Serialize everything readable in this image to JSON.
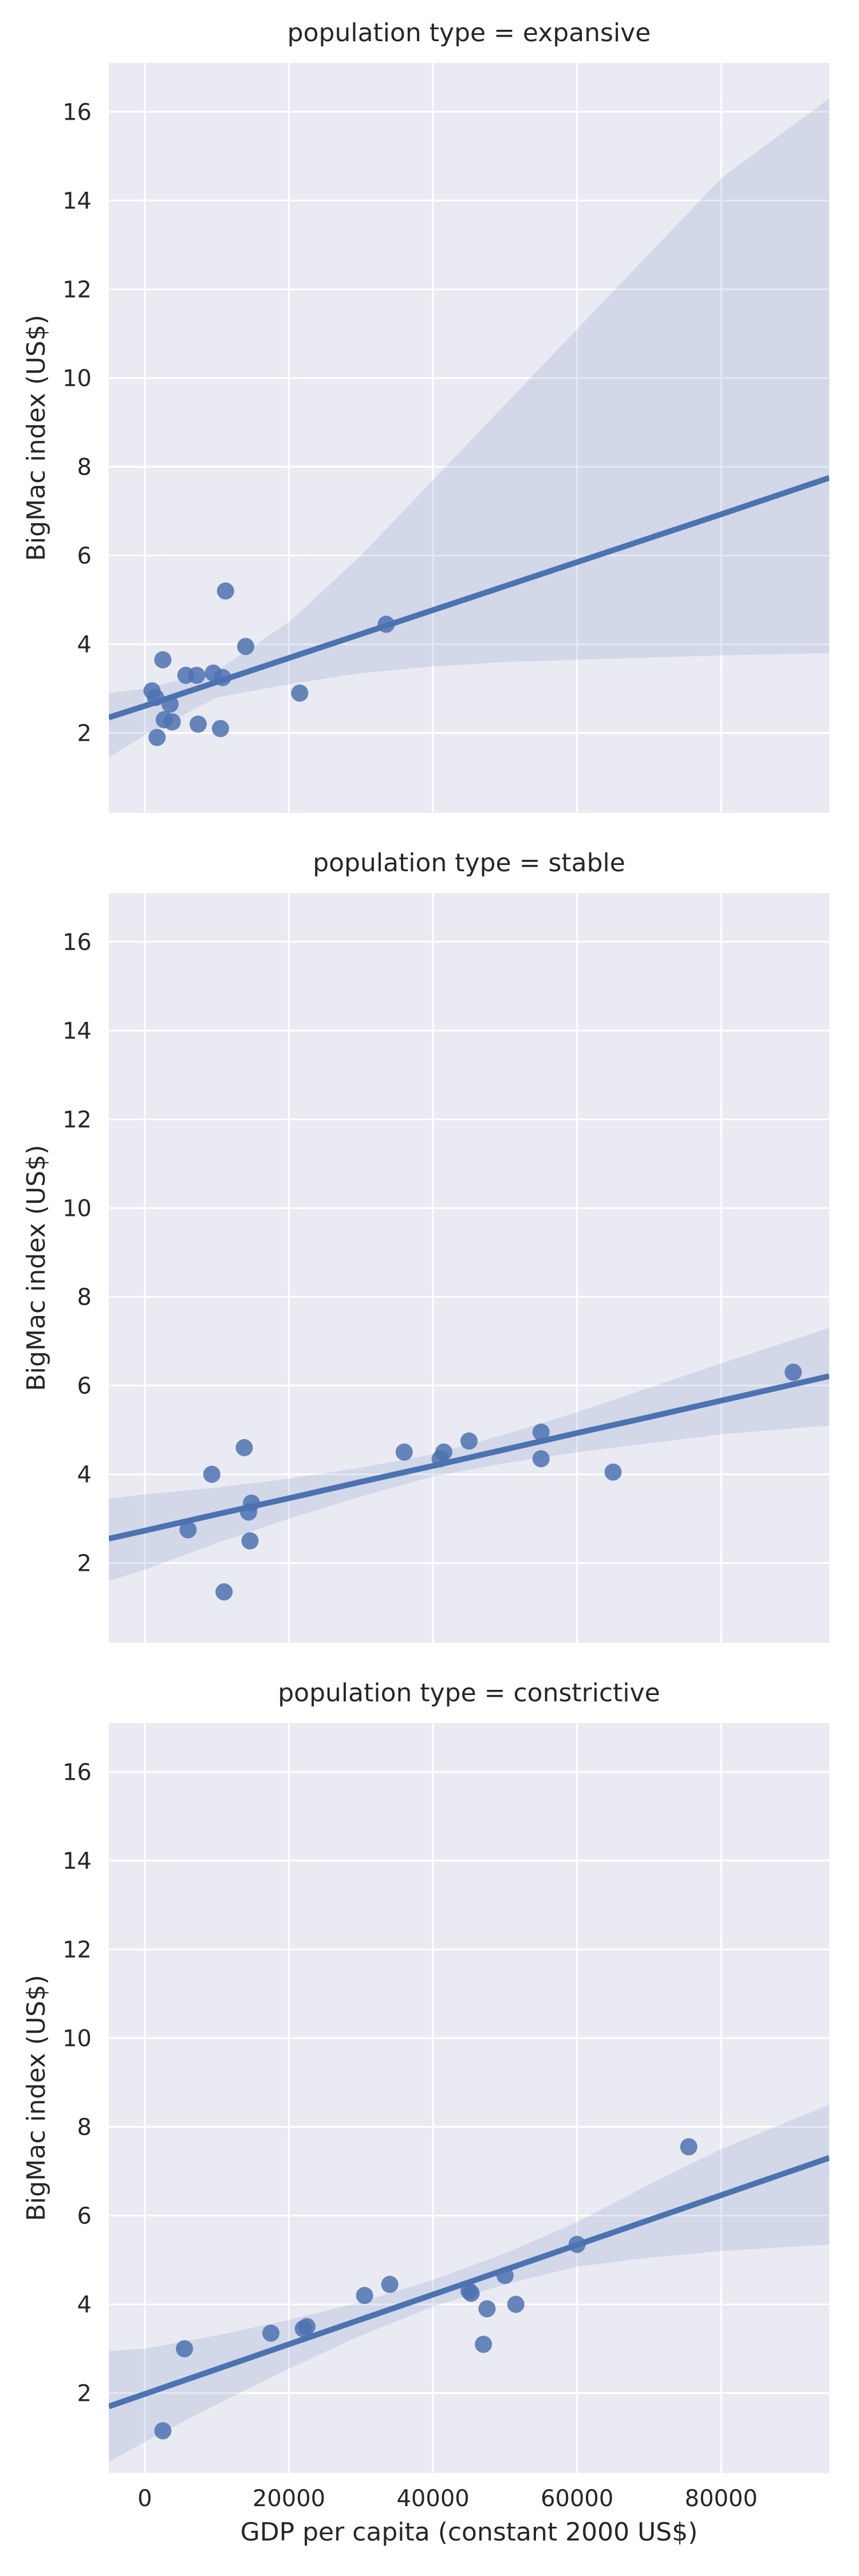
{
  "chart_data": {
    "type": "scatter",
    "xlabel": "GDP per capita (constant 2000 US$)",
    "ylabel": "BigMac index (US$)",
    "xlim": [
      -5000,
      95000
    ],
    "ylim": [
      0.2,
      17.1
    ],
    "x_ticks": [
      0,
      20000,
      40000,
      60000,
      80000
    ],
    "y_ticks": [
      2,
      4,
      6,
      8,
      10,
      12,
      14,
      16
    ],
    "grid": true,
    "colors": {
      "point": "#4C72B0",
      "line": "#4C72B0",
      "band": "#4C72B0",
      "panel_background": "#EAEAF2",
      "grid": "#FFFFFF"
    },
    "panels": [
      {
        "title": "population type = expansive",
        "points": [
          [
            1000,
            2.95
          ],
          [
            1500,
            2.8
          ],
          [
            1700,
            1.9
          ],
          [
            2500,
            3.65
          ],
          [
            2700,
            2.3
          ],
          [
            3500,
            2.65
          ],
          [
            3800,
            2.25
          ],
          [
            5700,
            3.3
          ],
          [
            7200,
            3.3
          ],
          [
            7400,
            2.2
          ],
          [
            9500,
            3.35
          ],
          [
            10500,
            2.1
          ],
          [
            10800,
            3.25
          ],
          [
            11200,
            5.2
          ],
          [
            14000,
            3.95
          ],
          [
            21500,
            2.9
          ],
          [
            33500,
            4.45
          ]
        ],
        "regression": {
          "x": [
            -5000,
            0,
            10000,
            20000,
            30000,
            40000,
            50000,
            60000,
            70000,
            80000,
            95000
          ],
          "y": [
            2.35,
            2.61,
            3.15,
            3.69,
            4.23,
            4.77,
            5.31,
            5.85,
            6.39,
            6.93,
            7.75
          ],
          "ci_low": [
            1.45,
            1.95,
            2.8,
            3.1,
            3.35,
            3.5,
            3.6,
            3.65,
            3.7,
            3.75,
            3.8
          ],
          "ci_high": [
            2.9,
            3.0,
            3.4,
            4.5,
            6.0,
            7.7,
            9.4,
            11.1,
            12.8,
            14.5,
            16.3
          ]
        }
      },
      {
        "title": "population type = stable",
        "points": [
          [
            6000,
            2.75
          ],
          [
            9300,
            4.0
          ],
          [
            11000,
            1.35
          ],
          [
            13800,
            4.6
          ],
          [
            14400,
            3.15
          ],
          [
            14600,
            2.5
          ],
          [
            14800,
            3.35
          ],
          [
            36000,
            4.5
          ],
          [
            41000,
            4.35
          ],
          [
            41500,
            4.5
          ],
          [
            45000,
            4.75
          ],
          [
            55000,
            4.95
          ],
          [
            55000,
            4.35
          ],
          [
            65000,
            4.05
          ],
          [
            90000,
            6.3
          ]
        ],
        "regression": {
          "x": [
            -5000,
            0,
            10000,
            20000,
            30000,
            40000,
            50000,
            60000,
            70000,
            80000,
            95000
          ],
          "y": [
            2.55,
            2.73,
            3.1,
            3.46,
            3.83,
            4.19,
            4.56,
            4.93,
            5.29,
            5.66,
            6.21
          ],
          "ci_low": [
            1.6,
            1.85,
            2.45,
            3.0,
            3.5,
            3.95,
            4.25,
            4.5,
            4.7,
            4.9,
            5.1
          ],
          "ci_high": [
            3.45,
            3.55,
            3.7,
            3.9,
            4.15,
            4.45,
            4.9,
            5.4,
            5.95,
            6.5,
            7.3
          ]
        }
      },
      {
        "title": "population type = constrictive",
        "points": [
          [
            2500,
            1.15
          ],
          [
            5500,
            3.0
          ],
          [
            17500,
            3.35
          ],
          [
            22000,
            3.45
          ],
          [
            22500,
            3.5
          ],
          [
            30500,
            4.2
          ],
          [
            34000,
            4.45
          ],
          [
            45000,
            4.3
          ],
          [
            45300,
            4.25
          ],
          [
            47000,
            3.1
          ],
          [
            47500,
            3.9
          ],
          [
            50000,
            4.65
          ],
          [
            51500,
            4.0
          ],
          [
            60000,
            5.35
          ],
          [
            75500,
            7.55
          ]
        ],
        "regression": {
          "x": [
            -5000,
            0,
            10000,
            20000,
            30000,
            40000,
            50000,
            60000,
            70000,
            80000,
            95000
          ],
          "y": [
            1.7,
            1.98,
            2.54,
            3.1,
            3.66,
            4.22,
            4.78,
            5.34,
            5.9,
            6.46,
            7.3
          ],
          "ci_low": [
            0.45,
            0.9,
            1.75,
            2.55,
            3.3,
            3.95,
            4.45,
            4.85,
            5.05,
            5.2,
            5.35
          ],
          "ci_high": [
            2.95,
            3.0,
            3.3,
            3.65,
            4.05,
            4.55,
            5.15,
            5.85,
            6.7,
            7.5,
            8.5
          ]
        }
      }
    ]
  }
}
